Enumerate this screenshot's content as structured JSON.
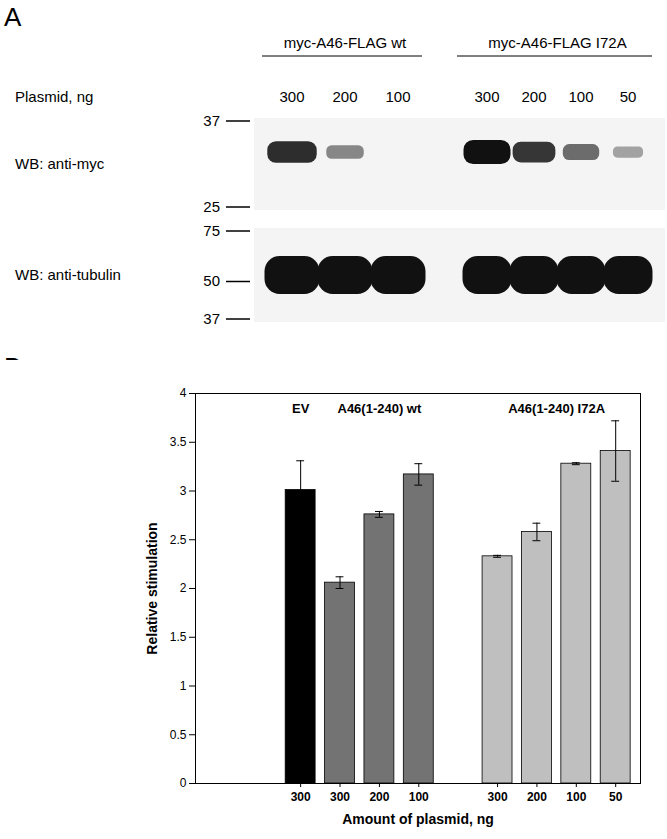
{
  "panel_a": {
    "label": "A",
    "row_label": "Plasmid, ng",
    "groups": [
      {
        "name": "myc-A46-FLAG wt",
        "plasmid_ng": [
          300,
          200,
          100
        ]
      },
      {
        "name": "myc-A46-FLAG I72A",
        "plasmid_ng": [
          300,
          200,
          100,
          50
        ]
      }
    ],
    "blots": [
      {
        "label": "WB: anti-myc",
        "markers": [
          37,
          25
        ],
        "band_intensity": [
          [
            0.85,
            0.35,
            0
          ],
          [
            1,
            0.8,
            0.5,
            0.2
          ]
        ]
      },
      {
        "label": "WB: anti-tubulin",
        "markers": [
          75,
          50,
          37
        ],
        "band_intensity": [
          [
            1,
            1,
            1
          ],
          [
            1,
            1,
            1,
            1
          ]
        ]
      }
    ]
  },
  "panel_b_label": "B",
  "chart_data": {
    "type": "bar",
    "y_label": "Relative stimulation",
    "x_label": "Amount of plasmid, ng",
    "categories": [
      "300",
      "300",
      "200",
      "100",
      null,
      "300",
      "200",
      "100",
      "50"
    ],
    "series": [
      {
        "name": "EV",
        "color": "#000000",
        "values": [
          3.01,
          null,
          null,
          null,
          null,
          null,
          null,
          null,
          null
        ],
        "errors": [
          0.3,
          null,
          null,
          null,
          null,
          null,
          null,
          null,
          null
        ]
      },
      {
        "name": "A46(1-240) wt",
        "color": "#737373",
        "values": [
          null,
          2.06,
          2.76,
          3.17,
          null,
          null,
          null,
          null,
          null
        ],
        "errors": [
          null,
          0.06,
          0.03,
          0.11,
          null,
          null,
          null,
          null,
          null
        ]
      },
      {
        "name": "A46(1-240) I72A",
        "color": "#bfbfbf",
        "values": [
          null,
          null,
          null,
          null,
          null,
          2.33,
          2.58,
          3.28,
          3.41
        ],
        "errors": [
          null,
          null,
          null,
          null,
          null,
          0.01,
          0.09,
          0.01,
          0.31
        ]
      }
    ],
    "ylim": [
      0,
      4
    ],
    "yticks": [
      0,
      0.5,
      1,
      1.5,
      2,
      2.5,
      3,
      3.5,
      4
    ]
  }
}
